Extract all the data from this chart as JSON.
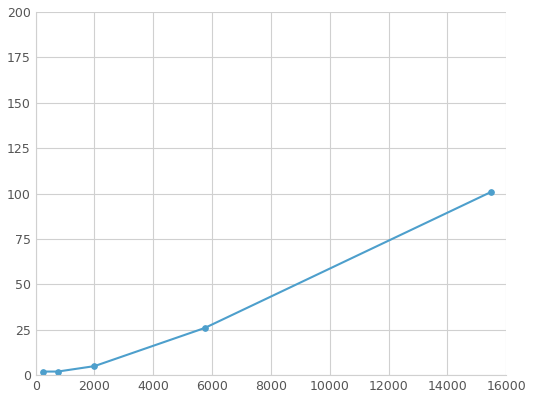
{
  "x": [
    250,
    750,
    2000,
    5750,
    15500
  ],
  "y": [
    2,
    2,
    5,
    26,
    101
  ],
  "line_color": "#4d9fcc",
  "marker_style": "o",
  "marker_size": 4,
  "marker_facecolor": "#4d9fcc",
  "marker_edgecolor": "#4d9fcc",
  "xlim": [
    0,
    16000
  ],
  "ylim": [
    0,
    200
  ],
  "xticks": [
    0,
    2000,
    4000,
    6000,
    8000,
    10000,
    12000,
    14000,
    16000
  ],
  "yticks": [
    0,
    25,
    50,
    75,
    100,
    125,
    150,
    175,
    200
  ],
  "grid_color": "#d0d0d0",
  "background_color": "#ffffff",
  "linewidth": 1.5,
  "tick_labelsize": 9,
  "tick_color": "#555555"
}
